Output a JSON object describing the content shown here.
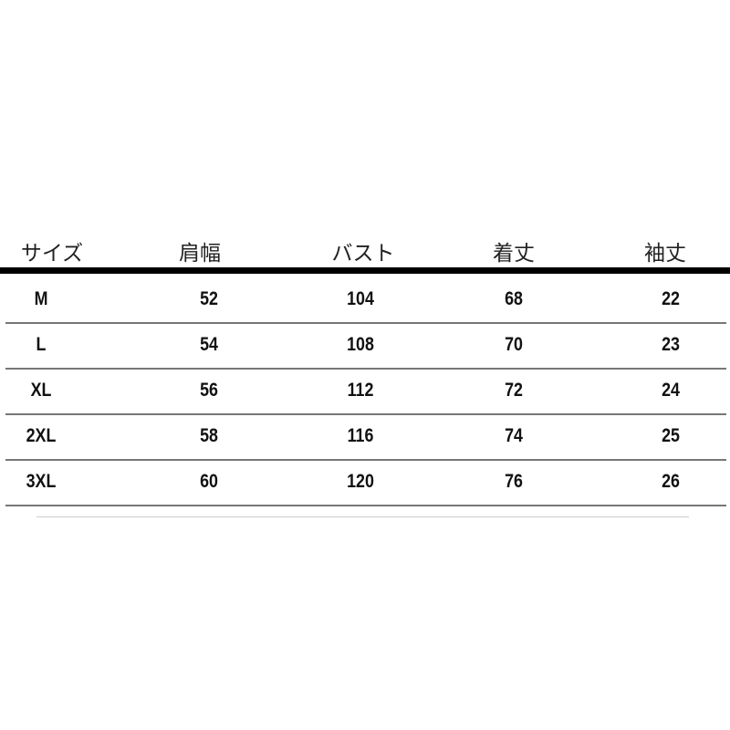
{
  "table": {
    "headers": [
      "サイズ",
      "肩幅",
      "バスト",
      "着丈",
      "袖丈"
    ],
    "rows": [
      [
        "M",
        "52",
        "104",
        "68",
        "22"
      ],
      [
        "L",
        "54",
        "108",
        "70",
        "23"
      ],
      [
        "XL",
        "56",
        "112",
        "72",
        "24"
      ],
      [
        "2XL",
        "58",
        "116",
        "74",
        "25"
      ],
      [
        "3XL",
        "60",
        "120",
        "76",
        "26"
      ]
    ]
  }
}
